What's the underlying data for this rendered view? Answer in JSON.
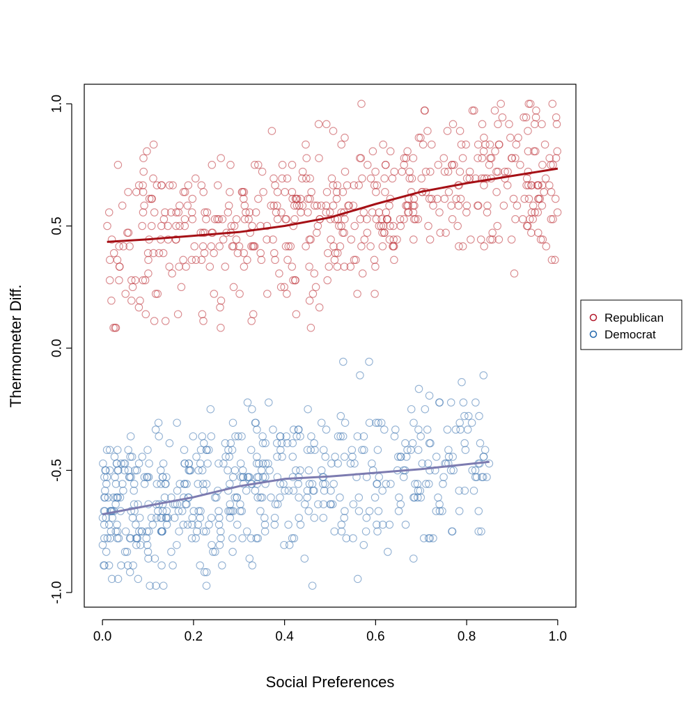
{
  "chart_data": {
    "type": "scatter",
    "title": "",
    "xlabel": "Social Preferences",
    "ylabel": "Thermometer Diff.",
    "xlim": [
      -0.04,
      1.04
    ],
    "ylim": [
      -1.06,
      1.08
    ],
    "xticks": [
      0.0,
      0.2,
      0.4,
      0.6,
      0.8,
      1.0
    ],
    "xtick_labels": [
      "0.0",
      "0.2",
      "0.4",
      "0.6",
      "0.8",
      "1.0"
    ],
    "yticks": [
      -1.0,
      -0.5,
      0.0,
      0.5,
      1.0
    ],
    "ytick_labels": [
      "-1.0",
      "-0.5",
      "0.0",
      "0.5",
      "1.0"
    ],
    "grid": false,
    "legend": {
      "position": "right",
      "entries": [
        {
          "label": "Republican",
          "color": "#B2182B"
        },
        {
          "label": "Democrat",
          "color": "#2166AC"
        }
      ]
    },
    "series": [
      {
        "name": "Republican",
        "color": "#C0393F",
        "marker": "open-circle",
        "n_points": 560,
        "x_range": [
          0.01,
          1.0
        ],
        "y_range": [
          0.0,
          1.0
        ],
        "smooth_fit": {
          "color": "#A50F15",
          "x": [
            0.01,
            0.1,
            0.2,
            0.3,
            0.4,
            0.5,
            0.6,
            0.7,
            0.8,
            0.9,
            1.0
          ],
          "y": [
            0.435,
            0.445,
            0.46,
            0.475,
            0.5,
            0.535,
            0.59,
            0.64,
            0.675,
            0.705,
            0.735
          ]
        }
      },
      {
        "name": "Democrat",
        "color": "#4A7DB5",
        "marker": "open-circle",
        "n_points": 560,
        "x_range": [
          0.0,
          0.85
        ],
        "y_range": [
          -0.97,
          -0.06
        ],
        "smooth_fit": {
          "color": "#7C7BB0",
          "x": [
            0.0,
            0.1,
            0.2,
            0.3,
            0.4,
            0.5,
            0.6,
            0.7,
            0.85
          ],
          "y": [
            -0.68,
            -0.645,
            -0.61,
            -0.565,
            -0.535,
            -0.525,
            -0.51,
            -0.495,
            -0.465
          ]
        }
      }
    ]
  }
}
